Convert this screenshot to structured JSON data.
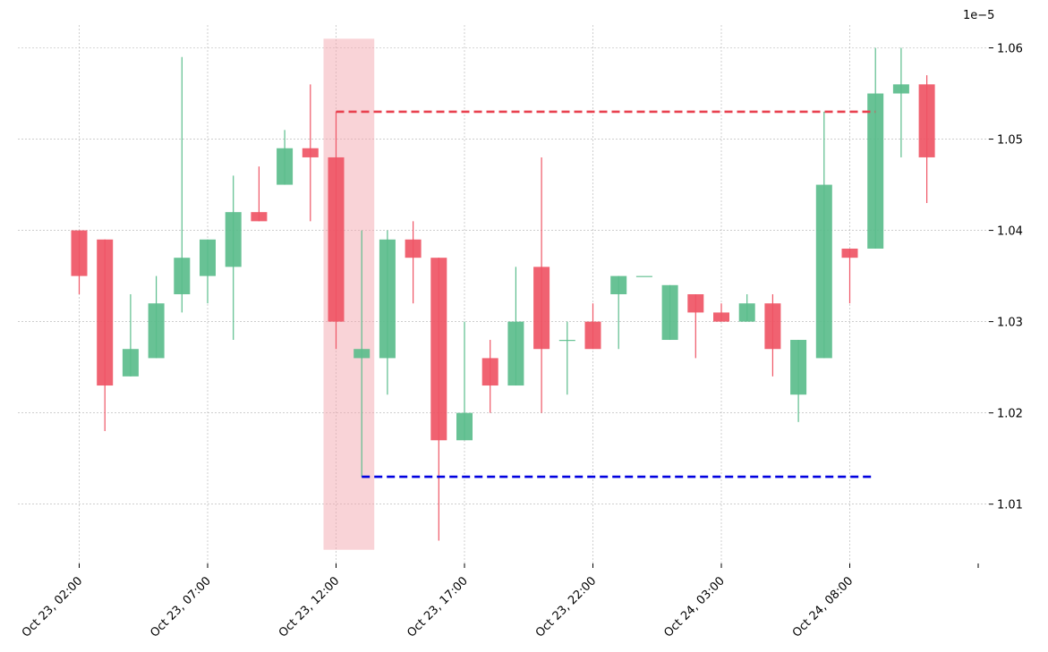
{
  "chart_data": {
    "type": "candlestick",
    "title": "",
    "xlabel": "",
    "ylabel": "",
    "y_exponent_label": "1e−5",
    "ylim": [
      1.0035,
      1.0625
    ],
    "x_tick_labels": [
      {
        "index": 0,
        "label": "Oct 23, 02:00"
      },
      {
        "index": 5,
        "label": "Oct 23, 07:00"
      },
      {
        "index": 10,
        "label": "Oct 23, 12:00"
      },
      {
        "index": 15,
        "label": "Oct 23, 17:00"
      },
      {
        "index": 20,
        "label": "Oct 23, 22:00"
      },
      {
        "index": 25,
        "label": "Oct 24, 03:00"
      },
      {
        "index": 30,
        "label": "Oct 24, 08:00"
      },
      {
        "index": 35,
        "label": ""
      }
    ],
    "y_ticks": [
      {
        "value": 1.01,
        "label": "1.01"
      },
      {
        "value": 1.02,
        "label": "1.02"
      },
      {
        "value": 1.03,
        "label": "1.03"
      },
      {
        "value": 1.04,
        "label": "1.04"
      },
      {
        "value": 1.05,
        "label": "1.05"
      },
      {
        "value": 1.06,
        "label": "1.06"
      }
    ],
    "grid": true,
    "candles": [
      {
        "t": "Oct 23, 02:00",
        "open": 1.04,
        "high": 1.04,
        "low": 1.033,
        "close": 1.035
      },
      {
        "t": "Oct 23, 03:00",
        "open": 1.039,
        "high": 1.039,
        "low": 1.018,
        "close": 1.023
      },
      {
        "t": "Oct 23, 04:00",
        "open": 1.024,
        "high": 1.033,
        "low": 1.024,
        "close": 1.027
      },
      {
        "t": "Oct 23, 05:00",
        "open": 1.026,
        "high": 1.035,
        "low": 1.026,
        "close": 1.032
      },
      {
        "t": "Oct 23, 06:00",
        "open": 1.033,
        "high": 1.059,
        "low": 1.031,
        "close": 1.037
      },
      {
        "t": "Oct 23, 07:00",
        "open": 1.035,
        "high": 1.039,
        "low": 1.032,
        "close": 1.039
      },
      {
        "t": "Oct 23, 08:00",
        "open": 1.036,
        "high": 1.046,
        "low": 1.028,
        "close": 1.042
      },
      {
        "t": "Oct 23, 09:00",
        "open": 1.042,
        "high": 1.047,
        "low": 1.041,
        "close": 1.041
      },
      {
        "t": "Oct 23, 10:00",
        "open": 1.045,
        "high": 1.051,
        "low": 1.045,
        "close": 1.049
      },
      {
        "t": "Oct 23, 11:00",
        "open": 1.049,
        "high": 1.056,
        "low": 1.041,
        "close": 1.048
      },
      {
        "t": "Oct 23, 12:00",
        "open": 1.048,
        "high": 1.053,
        "low": 1.027,
        "close": 1.03
      },
      {
        "t": "Oct 23, 13:00",
        "open": 1.026,
        "high": 1.04,
        "low": 1.013,
        "close": 1.027
      },
      {
        "t": "Oct 23, 14:00",
        "open": 1.026,
        "high": 1.04,
        "low": 1.022,
        "close": 1.039
      },
      {
        "t": "Oct 23, 15:00",
        "open": 1.039,
        "high": 1.041,
        "low": 1.032,
        "close": 1.037
      },
      {
        "t": "Oct 23, 16:00",
        "open": 1.037,
        "high": 1.037,
        "low": 1.006,
        "close": 1.017
      },
      {
        "t": "Oct 23, 17:00",
        "open": 1.017,
        "high": 1.03,
        "low": 1.017,
        "close": 1.02
      },
      {
        "t": "Oct 23, 18:00",
        "open": 1.026,
        "high": 1.028,
        "low": 1.02,
        "close": 1.023
      },
      {
        "t": "Oct 23, 19:00",
        "open": 1.023,
        "high": 1.036,
        "low": 1.023,
        "close": 1.03
      },
      {
        "t": "Oct 23, 20:00",
        "open": 1.036,
        "high": 1.048,
        "low": 1.02,
        "close": 1.027
      },
      {
        "t": "Oct 23, 21:00",
        "open": 1.028,
        "high": 1.03,
        "low": 1.022,
        "close": 1.028
      },
      {
        "t": "Oct 23, 22:00",
        "open": 1.03,
        "high": 1.032,
        "low": 1.027,
        "close": 1.027
      },
      {
        "t": "Oct 23, 23:00",
        "open": 1.033,
        "high": 1.035,
        "low": 1.027,
        "close": 1.035
      },
      {
        "t": "Oct 24, 00:00",
        "open": 1.035,
        "high": 1.035,
        "low": 1.035,
        "close": 1.035
      },
      {
        "t": "Oct 24, 01:00",
        "open": 1.028,
        "high": 1.034,
        "low": 1.028,
        "close": 1.034
      },
      {
        "t": "Oct 24, 02:00",
        "open": 1.033,
        "high": 1.033,
        "low": 1.026,
        "close": 1.031
      },
      {
        "t": "Oct 24, 03:00",
        "open": 1.031,
        "high": 1.032,
        "low": 1.03,
        "close": 1.03
      },
      {
        "t": "Oct 24, 04:00",
        "open": 1.03,
        "high": 1.033,
        "low": 1.03,
        "close": 1.032
      },
      {
        "t": "Oct 24, 05:00",
        "open": 1.032,
        "high": 1.033,
        "low": 1.024,
        "close": 1.027
      },
      {
        "t": "Oct 24, 06:00",
        "open": 1.022,
        "high": 1.028,
        "low": 1.019,
        "close": 1.028
      },
      {
        "t": "Oct 24, 07:00",
        "open": 1.026,
        "high": 1.053,
        "low": 1.026,
        "close": 1.045
      },
      {
        "t": "Oct 24, 08:00",
        "open": 1.038,
        "high": 1.038,
        "low": 1.032,
        "close": 1.037
      },
      {
        "t": "Oct 24, 09:00",
        "open": 1.038,
        "high": 1.06,
        "low": 1.038,
        "close": 1.055
      },
      {
        "t": "Oct 24, 10:00",
        "open": 1.055,
        "high": 1.06,
        "low": 1.048,
        "close": 1.056
      },
      {
        "t": "Oct 24, 11:00",
        "open": 1.056,
        "high": 1.057,
        "low": 1.043,
        "close": 1.048
      }
    ],
    "highlight_band": {
      "start_index": 10,
      "end_index": 11,
      "y_top": 1.061,
      "y_bottom": 1.005,
      "color": "#f4a7b0"
    },
    "resistance_line": {
      "y": 1.053,
      "start_index": 10,
      "end_index": 31,
      "color": "#e8414f"
    },
    "support_line": {
      "y": 1.013,
      "start_index": 11,
      "end_index": 31,
      "color": "#0000e0"
    },
    "colors": {
      "up": "#5bbd8c",
      "down": "#ef5565",
      "grid": "#b0b0b0",
      "axis": "#000000"
    }
  }
}
